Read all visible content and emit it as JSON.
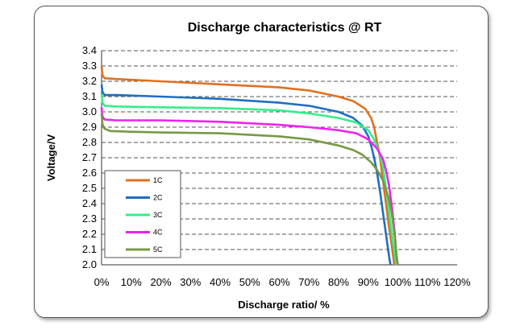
{
  "chart_data": {
    "type": "line",
    "title": "Discharge characteristics @ RT",
    "xlabel": "Discharge ratio/ %",
    "ylabel": "Voltage/V",
    "xlim": [
      0,
      120
    ],
    "ylim": [
      2.0,
      3.4
    ],
    "x_ticks": [
      "0%",
      "10%",
      "20%",
      "30%",
      "40%",
      "50%",
      "60%",
      "70%",
      "80%",
      "90%",
      "100%",
      "110%",
      "120%"
    ],
    "y_ticks": [
      "2.0",
      "2.1",
      "2.2",
      "2.3",
      "2.4",
      "2.5",
      "2.6",
      "2.7",
      "2.8",
      "2.9",
      "3.0",
      "3.1",
      "3.2",
      "3.3",
      "3.4"
    ],
    "grid": "horizontal dashed",
    "legend_position": "bottom-left",
    "series": [
      {
        "name": "1C",
        "color": "#E07020",
        "points": [
          [
            0,
            3.3
          ],
          [
            0.3,
            3.24
          ],
          [
            1,
            3.22
          ],
          [
            5,
            3.215
          ],
          [
            20,
            3.2
          ],
          [
            40,
            3.18
          ],
          [
            60,
            3.16
          ],
          [
            70,
            3.14
          ],
          [
            80,
            3.1
          ],
          [
            85,
            3.07
          ],
          [
            89,
            3.02
          ],
          [
            91,
            2.96
          ],
          [
            92,
            2.9
          ],
          [
            93,
            2.8
          ],
          [
            94,
            2.7
          ],
          [
            95,
            2.55
          ],
          [
            96,
            2.4
          ],
          [
            97,
            2.25
          ],
          [
            98,
            2.12
          ],
          [
            98.8,
            2.0
          ]
        ]
      },
      {
        "name": "2C",
        "color": "#1F6FC1",
        "points": [
          [
            0,
            3.18
          ],
          [
            0.3,
            3.13
          ],
          [
            1,
            3.11
          ],
          [
            5,
            3.11
          ],
          [
            20,
            3.1
          ],
          [
            40,
            3.085
          ],
          [
            60,
            3.06
          ],
          [
            70,
            3.04
          ],
          [
            80,
            3.0
          ],
          [
            85,
            2.96
          ],
          [
            88,
            2.91
          ],
          [
            90,
            2.84
          ],
          [
            91,
            2.78
          ],
          [
            92,
            2.7
          ],
          [
            93,
            2.6
          ],
          [
            94,
            2.48
          ],
          [
            95,
            2.34
          ],
          [
            96,
            2.2
          ],
          [
            97,
            2.06
          ],
          [
            97.5,
            2.0
          ]
        ]
      },
      {
        "name": "3C",
        "color": "#33EE88",
        "points": [
          [
            0,
            3.12
          ],
          [
            0.3,
            3.06
          ],
          [
            1,
            3.04
          ],
          [
            5,
            3.035
          ],
          [
            20,
            3.03
          ],
          [
            40,
            3.025
          ],
          [
            60,
            3.01
          ],
          [
            70,
            2.99
          ],
          [
            80,
            2.96
          ],
          [
            86,
            2.93
          ],
          [
            90,
            2.88
          ],
          [
            92,
            2.82
          ],
          [
            94,
            2.72
          ],
          [
            95,
            2.64
          ],
          [
            96,
            2.5
          ],
          [
            97,
            2.35
          ],
          [
            98,
            2.2
          ],
          [
            99,
            2.06
          ],
          [
            99.5,
            2.0
          ]
        ]
      },
      {
        "name": "4C",
        "color": "#EE22EE",
        "points": [
          [
            0,
            3.03
          ],
          [
            0.3,
            2.97
          ],
          [
            1,
            2.95
          ],
          [
            5,
            2.945
          ],
          [
            20,
            2.945
          ],
          [
            40,
            2.935
          ],
          [
            60,
            2.915
          ],
          [
            70,
            2.9
          ],
          [
            80,
            2.88
          ],
          [
            86,
            2.86
          ],
          [
            90,
            2.82
          ],
          [
            93,
            2.76
          ],
          [
            95,
            2.69
          ],
          [
            96,
            2.62
          ],
          [
            97,
            2.52
          ],
          [
            98,
            2.38
          ],
          [
            99,
            2.2
          ],
          [
            99.6,
            2.05
          ],
          [
            100,
            2.0
          ]
        ]
      },
      {
        "name": "5C",
        "color": "#779944",
        "points": [
          [
            0,
            2.99
          ],
          [
            0.3,
            2.92
          ],
          [
            1,
            2.89
          ],
          [
            3,
            2.875
          ],
          [
            10,
            2.87
          ],
          [
            20,
            2.865
          ],
          [
            40,
            2.86
          ],
          [
            60,
            2.84
          ],
          [
            70,
            2.82
          ],
          [
            80,
            2.78
          ],
          [
            85,
            2.75
          ],
          [
            88,
            2.72
          ],
          [
            91,
            2.67
          ],
          [
            93,
            2.62
          ],
          [
            95,
            2.55
          ],
          [
            97,
            2.43
          ],
          [
            98,
            2.33
          ],
          [
            99,
            2.18
          ],
          [
            99.6,
            2.06
          ],
          [
            100,
            2.0
          ]
        ]
      }
    ]
  }
}
